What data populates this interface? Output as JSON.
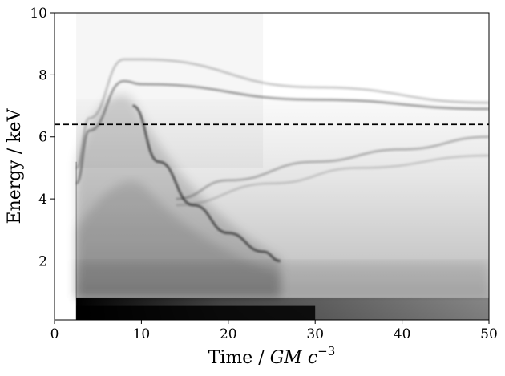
{
  "chart_data": {
    "type": "heatmap",
    "title": "",
    "xlabel": {
      "prefix": "Time / ",
      "unit_symbol": "GM c",
      "exponent": "−3"
    },
    "ylabel": "Energy / keV",
    "xlim": [
      0,
      50
    ],
    "ylim": [
      0.1,
      10
    ],
    "x_ticks": [
      0,
      10,
      20,
      30,
      40,
      50
    ],
    "y_ticks": [
      2,
      4,
      6,
      8,
      10
    ],
    "colormap": "greys",
    "colors": {
      "dark": "#000000",
      "light": "#ffffff",
      "reference_line": "#000000"
    },
    "grid": false,
    "legend": "none",
    "reference_line": {
      "orientation": "horizontal",
      "y": 6.4,
      "style": "dashed"
    },
    "features": {
      "onset_time": 2.5,
      "low_energy_band": {
        "ymin": 0.1,
        "ymax": 0.8,
        "intensity": 1.0
      },
      "ridge_lines": [
        {
          "points": [
            [
              2.5,
              5.0
            ],
            [
              4,
              6.6
            ],
            [
              8,
              8.5
            ],
            [
              10,
              8.5
            ],
            [
              30,
              7.6
            ],
            [
              50,
              7.1
            ]
          ],
          "intensity": 0.2
        },
        {
          "points": [
            [
              2.5,
              4.5
            ],
            [
              4,
              6.2
            ],
            [
              8,
              7.8
            ],
            [
              10,
              7.7
            ],
            [
              30,
              7.2
            ],
            [
              50,
              6.9
            ]
          ],
          "intensity": 0.35
        },
        {
          "points": [
            [
              9,
              7.0
            ],
            [
              12,
              5.2
            ],
            [
              16,
              3.8
            ],
            [
              20,
              2.9
            ],
            [
              24,
              2.3
            ],
            [
              26,
              2.0
            ]
          ],
          "intensity": 0.55
        },
        {
          "points": [
            [
              14,
              4.0
            ],
            [
              20,
              4.6
            ],
            [
              30,
              5.2
            ],
            [
              40,
              5.6
            ],
            [
              50,
              6.0
            ]
          ],
          "intensity": 0.25
        },
        {
          "points": [
            [
              14,
              3.8
            ],
            [
              25,
              4.5
            ],
            [
              35,
              5.0
            ],
            [
              50,
              5.4
            ]
          ],
          "intensity": 0.15
        }
      ]
    }
  }
}
